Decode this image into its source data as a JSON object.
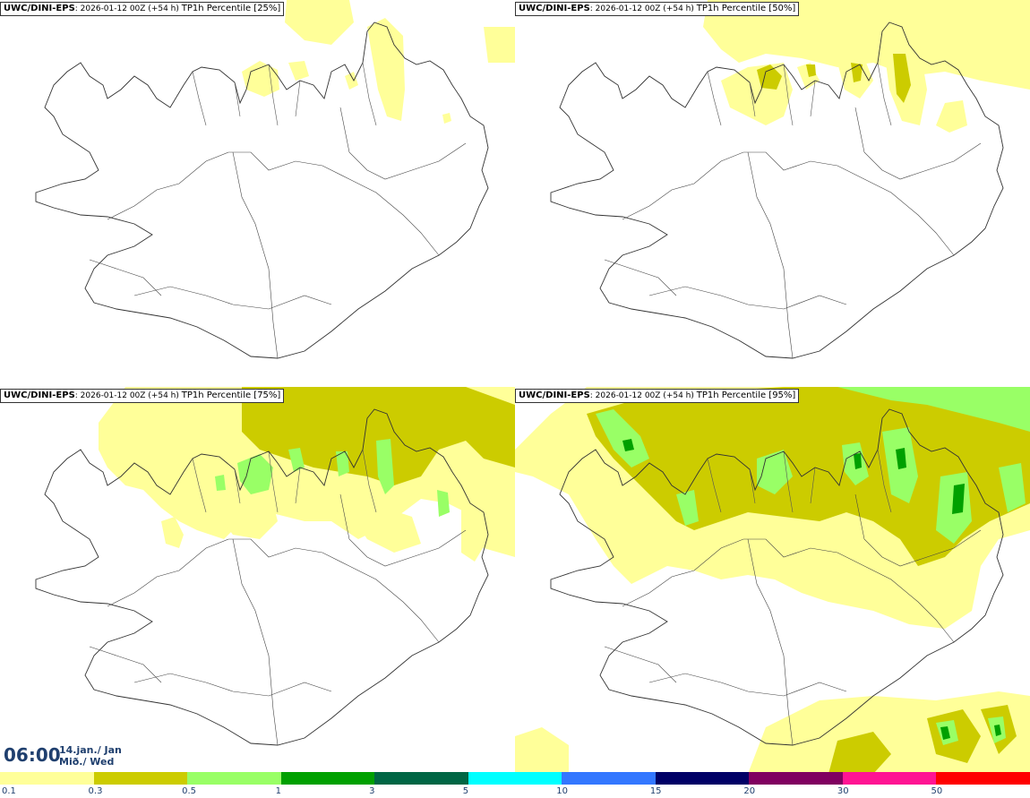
{
  "panels": [
    {
      "model": "UWC/DINI-EPS",
      "run": ": 2026-01-12 00Z (+54 h)",
      "param": "TP1h Percentile [25%]"
    },
    {
      "model": "UWC/DINI-EPS",
      "run": ": 2026-01-12 00Z (+54 h)",
      "param": "TP1h Percentile [50%]"
    },
    {
      "model": "UWC/DINI-EPS",
      "run": ": 2026-01-12 00Z (+54 h)",
      "param": "TP1h Percentile [75%]"
    },
    {
      "model": "UWC/DINI-EPS",
      "run": ": 2026-01-12 00Z (+54 h)",
      "param": "TP1h Percentile [95%]"
    }
  ],
  "valid_time": {
    "time": "06:00",
    "date_line1": "14.jan./ Jan",
    "date_line2": "Mið./ Wed"
  },
  "legend": {
    "ticks": [
      "0.1",
      "0.3",
      "0.5",
      "1",
      "3",
      "5",
      "10",
      "15",
      "20",
      "30",
      "50"
    ],
    "colors": [
      "#ffff99",
      "#cccc00",
      "#99ff66",
      "#00a000",
      "#006644",
      "#00ffff",
      "#3377ff",
      "#000066",
      "#800060",
      "#ff1493",
      "#ff0000"
    ]
  }
}
